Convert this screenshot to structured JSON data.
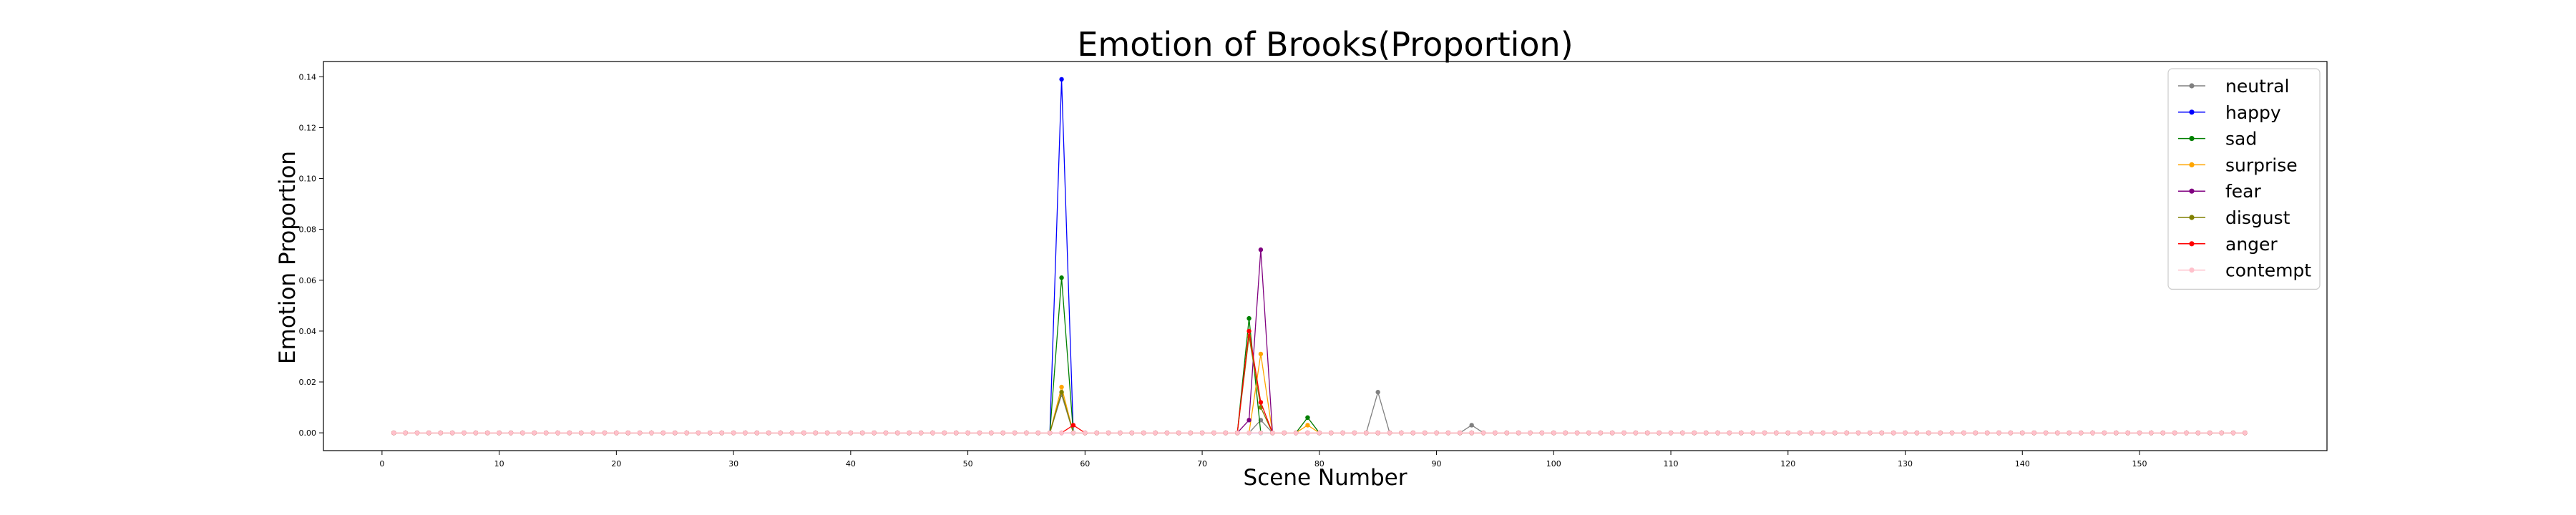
{
  "chart_data": {
    "type": "line",
    "title": "Emotion of Brooks(Proportion)",
    "xlabel": "Scene Number",
    "ylabel": "Emotion Proportion",
    "xlim": [
      -5,
      166
    ],
    "ylim": [
      -0.007,
      0.146
    ],
    "xticks": [
      0,
      10,
      20,
      30,
      40,
      50,
      60,
      70,
      80,
      90,
      100,
      110,
      120,
      130,
      140,
      150
    ],
    "yticks": [
      "0.00",
      "0.02",
      "0.04",
      "0.06",
      "0.08",
      "0.10",
      "0.12",
      "0.14"
    ],
    "x_range": [
      1,
      159
    ],
    "legend_position": "top-right",
    "grid": false,
    "series": [
      {
        "name": "neutral",
        "color": "#808080",
        "points": [
          [
            57,
            0.0
          ],
          [
            58,
            0.015
          ],
          [
            59,
            0.0
          ],
          [
            74,
            0.0
          ],
          [
            75,
            0.005
          ],
          [
            76,
            0.0
          ],
          [
            78,
            0.0
          ],
          [
            79,
            0.006
          ],
          [
            80,
            0.0
          ],
          [
            84,
            0.0
          ],
          [
            85,
            0.016
          ],
          [
            86,
            0.0
          ],
          [
            92,
            0.0
          ],
          [
            93,
            0.003
          ],
          [
            94,
            0.0
          ]
        ]
      },
      {
        "name": "happy",
        "color": "#0000ff",
        "points": [
          [
            57,
            0.0
          ],
          [
            58,
            0.139
          ],
          [
            59,
            0.0
          ]
        ]
      },
      {
        "name": "sad",
        "color": "#008000",
        "points": [
          [
            57,
            0.0
          ],
          [
            58,
            0.061
          ],
          [
            59,
            0.0
          ],
          [
            73,
            0.0
          ],
          [
            74,
            0.045
          ],
          [
            75,
            0.0
          ],
          [
            78,
            0.0
          ],
          [
            79,
            0.006
          ],
          [
            80,
            0.0
          ]
        ]
      },
      {
        "name": "surprise",
        "color": "#ffa500",
        "points": [
          [
            57,
            0.0
          ],
          [
            58,
            0.018
          ],
          [
            59,
            0.0
          ],
          [
            74,
            0.0
          ],
          [
            75,
            0.031
          ],
          [
            76,
            0.0
          ],
          [
            78,
            0.0
          ],
          [
            79,
            0.003
          ],
          [
            80,
            0.0
          ]
        ]
      },
      {
        "name": "fear",
        "color": "#800080",
        "points": [
          [
            73,
            0.0
          ],
          [
            74,
            0.005
          ],
          [
            75,
            0.072
          ],
          [
            76,
            0.0
          ]
        ]
      },
      {
        "name": "disgust",
        "color": "#808000",
        "points": [
          [
            57,
            0.0
          ],
          [
            58,
            0.016
          ],
          [
            59,
            0.0
          ],
          [
            73,
            0.0
          ],
          [
            74,
            0.038
          ],
          [
            75,
            0.01
          ],
          [
            76,
            0.0
          ]
        ]
      },
      {
        "name": "anger",
        "color": "#ff0000",
        "points": [
          [
            58,
            0.0
          ],
          [
            59,
            0.003
          ],
          [
            60,
            0.0
          ],
          [
            73,
            0.0
          ],
          [
            74,
            0.04
          ],
          [
            75,
            0.012
          ],
          [
            76,
            0.0
          ]
        ]
      },
      {
        "name": "contempt",
        "color": "#ffc0cb",
        "points": []
      }
    ]
  }
}
